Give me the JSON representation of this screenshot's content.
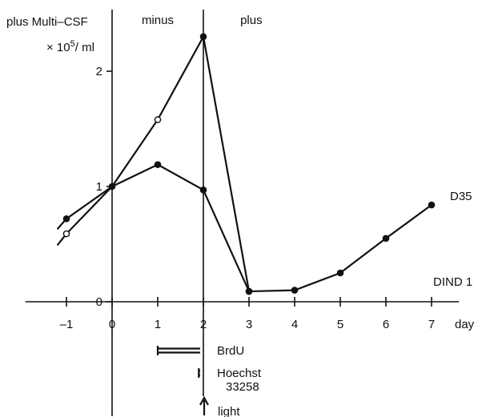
{
  "chart_data": {
    "type": "line",
    "ylabel": "plus Multi–CSF",
    "yunit_prefix": "× 10",
    "yunit_exp": "5",
    "yunit_suffix": "/ ml",
    "xlabel": "day",
    "xlim": [
      -1.9,
      7.6
    ],
    "ylim": [
      0,
      2.55
    ],
    "xticks": [
      -1,
      0,
      1,
      2,
      3,
      4,
      5,
      6,
      7
    ],
    "xtick_labels": [
      "–1",
      "0",
      "1",
      "2",
      "3",
      "4",
      "5",
      "6",
      "7"
    ],
    "yticks": [
      0,
      1,
      2
    ],
    "ytick_labels": [
      "0",
      "1",
      "2"
    ],
    "phase_labels": [
      "minus",
      "plus"
    ],
    "phase_boundaries": [
      0,
      2
    ],
    "series": [
      {
        "name": "D35",
        "marker": "filled",
        "x": [
          -1,
          0,
          1,
          2,
          3,
          4,
          5,
          6,
          7
        ],
        "y": [
          0.72,
          1.0,
          1.19,
          0.97,
          0.09,
          0.1,
          0.25,
          0.55,
          0.84
        ],
        "lead_in": [
          -1.2,
          0.63
        ]
      },
      {
        "name": "DIND 1",
        "marker": "mixed",
        "x": [
          -1,
          0,
          1,
          2,
          3
        ],
        "y": [
          0.59,
          1.0,
          1.58,
          2.3,
          0.09
        ],
        "open_points": [
          0,
          1,
          2
        ],
        "lead_in": [
          -1.2,
          0.49
        ]
      }
    ],
    "treatments": [
      {
        "label": "BrdU",
        "start": 1,
        "end": 2
      },
      {
        "label": "Hoechst",
        "label2": "33258",
        "start": 1.9,
        "end": 2
      },
      {
        "label": "light",
        "at": 2
      }
    ]
  }
}
